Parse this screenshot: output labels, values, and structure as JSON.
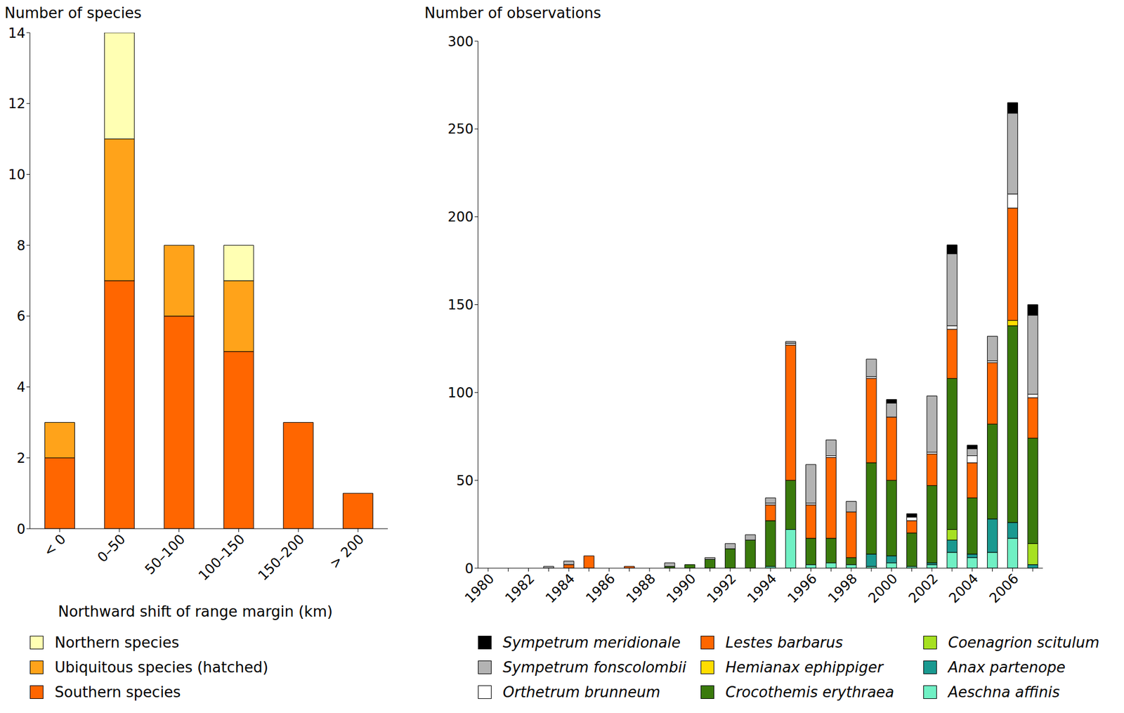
{
  "chart_data": [
    {
      "type": "bar",
      "stacked": true,
      "y_label": "Number of species",
      "x_label": "Northward shift of range margin (km)",
      "categories": [
        "< 0",
        "0–50",
        "50–100",
        "100–150",
        "150–200",
        "> 200"
      ],
      "ylim": [
        0,
        14
      ],
      "yticks": [
        0,
        2,
        4,
        6,
        8,
        10,
        12,
        14
      ],
      "series": [
        {
          "name": "Northern species",
          "color": "#ffffb3",
          "values": [
            0,
            3,
            0,
            1,
            0,
            0
          ]
        },
        {
          "name": "Ubiquitous species (hatched)",
          "color": "#ffa31a",
          "values": [
            1,
            4,
            2,
            2,
            0,
            0
          ]
        },
        {
          "name": "Southern species",
          "color": "#ff6600",
          "values": [
            2,
            7,
            6,
            5,
            3,
            1
          ]
        }
      ]
    },
    {
      "type": "bar",
      "stacked": true,
      "y_label": "Number of observations",
      "categories": [
        1980,
        null,
        1982,
        null,
        1984,
        null,
        1986,
        null,
        1988,
        null,
        1990,
        null,
        1992,
        null,
        1994,
        null,
        1996,
        null,
        1998,
        null,
        2000,
        null,
        2002,
        null,
        2004,
        null,
        2006,
        null
      ],
      "ylim": [
        0,
        300
      ],
      "yticks": [
        0,
        50,
        100,
        150,
        200,
        250,
        300
      ],
      "series": [
        {
          "name": "Sympetrum meridionale",
          "color": "#000000",
          "values": [
            0,
            0,
            0,
            0,
            0,
            0,
            0,
            0,
            0,
            0,
            0,
            0,
            0,
            0,
            0,
            0,
            0,
            0,
            0,
            0,
            2,
            2,
            0,
            5,
            2,
            0,
            6,
            6
          ]
        },
        {
          "name": "Sympetrum fonscolombii",
          "color": "#b3b3b3",
          "values": [
            0,
            0,
            0,
            1,
            2,
            0,
            0,
            0,
            0,
            2,
            0,
            1,
            3,
            3,
            3,
            1,
            22,
            9,
            6,
            10,
            8,
            0,
            32,
            41,
            4,
            14,
            46,
            45
          ]
        },
        {
          "name": "Orthetrum brunneum",
          "color": "#ffffff",
          "values": [
            0,
            0,
            0,
            0,
            0,
            0,
            0,
            0,
            0,
            0,
            0,
            0,
            0,
            0,
            1,
            1,
            1,
            1,
            0,
            1,
            0,
            2,
            1,
            2,
            4,
            1,
            8,
            2
          ]
        },
        {
          "name": "Lestes barbarus",
          "color": "#ff6600",
          "values": [
            0,
            0,
            0,
            0,
            2,
            7,
            0,
            1,
            0,
            0,
            0,
            0,
            0,
            0,
            9,
            77,
            19,
            46,
            26,
            48,
            36,
            7,
            18,
            28,
            20,
            35,
            64,
            23
          ]
        },
        {
          "name": "Hemianax ephippiger",
          "color": "#ffdd00",
          "values": [
            0,
            0,
            0,
            0,
            0,
            0,
            0,
            0,
            0,
            0,
            0,
            0,
            0,
            0,
            0,
            0,
            0,
            0,
            0,
            0,
            0,
            0,
            0,
            0,
            0,
            0,
            3,
            0
          ]
        },
        {
          "name": "Crocothemis erythraea",
          "color": "#3a7a0c",
          "values": [
            0,
            0,
            0,
            0,
            0,
            0,
            0,
            0,
            0,
            1,
            2,
            5,
            11,
            16,
            26,
            28,
            15,
            14,
            4,
            52,
            43,
            19,
            44,
            86,
            32,
            54,
            112,
            60
          ]
        },
        {
          "name": "Coenagrion scitulum",
          "color": "#a6e022",
          "values": [
            0,
            0,
            0,
            0,
            0,
            0,
            0,
            0,
            0,
            0,
            0,
            0,
            0,
            0,
            0,
            0,
            0,
            0,
            0,
            0,
            0,
            0,
            0,
            6,
            0,
            0,
            0,
            12
          ]
        },
        {
          "name": "Anax partenope",
          "color": "#1a9990",
          "values": [
            0,
            0,
            0,
            0,
            0,
            0,
            0,
            0,
            0,
            0,
            0,
            0,
            0,
            0,
            0,
            0,
            0,
            0,
            0,
            7,
            4,
            0,
            1,
            7,
            2,
            19,
            9,
            2
          ]
        },
        {
          "name": "Aeschna affinis",
          "color": "#70f0c4",
          "values": [
            0,
            0,
            0,
            0,
            0,
            0,
            0,
            0,
            0,
            0,
            0,
            0,
            0,
            0,
            1,
            22,
            2,
            3,
            2,
            1,
            3,
            1,
            2,
            9,
            6,
            9,
            17,
            0
          ]
        }
      ]
    }
  ]
}
